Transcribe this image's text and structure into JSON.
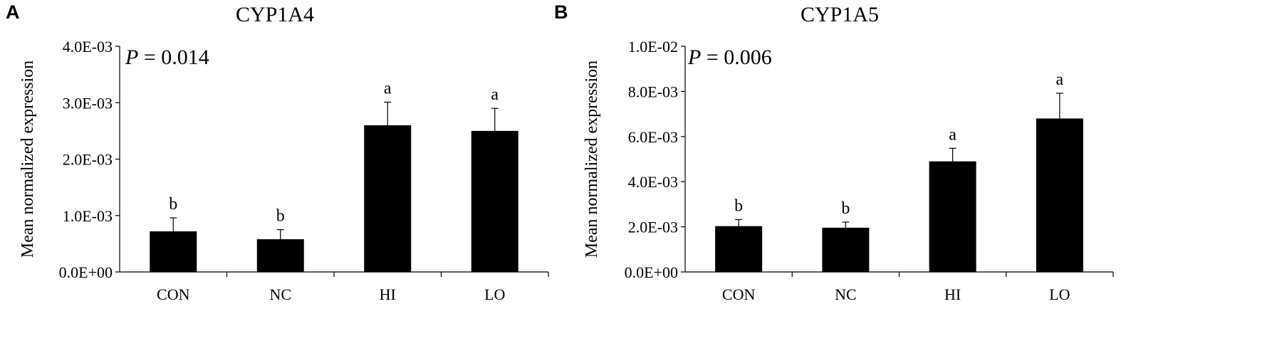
{
  "panels": [
    {
      "letter": "A",
      "p_prefix": "P",
      "p_suffix": " = 0.014",
      "chart_data": {
        "type": "bar",
        "title": "CYP1A4",
        "ylabel": "Mean normalized expression",
        "xlabel": "",
        "categories": [
          "CON",
          "NC",
          "HI",
          "LO"
        ],
        "values": [
          0.00072,
          0.00058,
          0.0026,
          0.0025
        ],
        "errors": [
          0.00024,
          0.00017,
          0.00041,
          0.0004
        ],
        "significance": [
          "b",
          "b",
          "a",
          "a"
        ],
        "ylim": [
          0,
          0.004
        ],
        "yticks": [
          0,
          0.001,
          0.002,
          0.003,
          0.004
        ],
        "ytick_labels": [
          "0.0E+00",
          "1.0E-03",
          "2.0E-03",
          "3.0E-03",
          "4.0E-03"
        ],
        "bar_color": "#000000",
        "grid": false
      }
    },
    {
      "letter": "B",
      "p_prefix": "P",
      "p_suffix": " = 0.006",
      "chart_data": {
        "type": "bar",
        "title": "CYP1A5",
        "ylabel": "Mean normalized expression",
        "xlabel": "",
        "categories": [
          "CON",
          "NC",
          "HI",
          "LO"
        ],
        "values": [
          0.00203,
          0.00196,
          0.0049,
          0.0068
        ],
        "errors": [
          0.00029,
          0.00025,
          0.00058,
          0.00112
        ],
        "significance": [
          "b",
          "b",
          "a",
          "a"
        ],
        "ylim": [
          0,
          0.01
        ],
        "yticks": [
          0,
          0.002,
          0.004,
          0.006,
          0.008,
          0.01
        ],
        "ytick_labels": [
          "0.0E+00",
          "2.0E-03",
          "4.0E-03",
          "6.0E-03",
          "8.0E-03",
          "1.0E-02"
        ],
        "bar_color": "#000000",
        "grid": false
      }
    }
  ]
}
